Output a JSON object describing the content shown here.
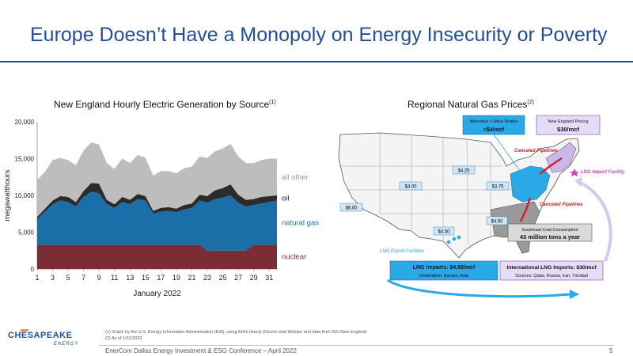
{
  "slide": {
    "title": "Europe Doesn’t Have a Monopoly on Energy Insecurity or Poverty",
    "left_chart_title": "New England Hourly Electric Generation by Source",
    "left_chart_title_note": "(1)",
    "right_chart_title": "Regional Natural Gas Prices",
    "right_chart_title_note": "(2)",
    "footnote_1_prefix": "(1)  Graph by the U.S. Energy Information Administration (EIA), using EIA’s ",
    "footnote_1_italic": "Hourly Electric Grid Monitor",
    "footnote_1_suffix": " and data from ISO New England",
    "footnote_2": "(2)  As of 1/31/2022",
    "footer": "EnerCom Dallas Energy Investment & ESG Conference – April 2022",
    "page_number": "5",
    "logo_text": "CHESAPEAKE",
    "logo_subtext": "ENERGY"
  },
  "chart_data": [
    {
      "type": "area",
      "title": "New England Hourly Electric Generation by Source",
      "xlabel": "January 2022",
      "ylabel": "megawatthours",
      "ylim": [
        0,
        20000
      ],
      "xlim": [
        1,
        32
      ],
      "yticks": [
        "0",
        "5,000",
        "10,000",
        "15,000",
        "20,000"
      ],
      "xticks": [
        "1",
        "3",
        "5",
        "7",
        "9",
        "11",
        "13",
        "15",
        "17",
        "19",
        "21",
        "23",
        "25",
        "27",
        "29",
        "31"
      ],
      "stacked": true,
      "series": [
        {
          "name": "nuclear",
          "color": "#7b2d35",
          "values": [
            3300,
            3300,
            3300,
            3300,
            3300,
            3300,
            3300,
            3300,
            3300,
            3300,
            3300,
            3300,
            3300,
            3300,
            3300,
            3300,
            3300,
            3300,
            3300,
            3300,
            3300,
            3300,
            2500,
            2500,
            2500,
            2500,
            2500,
            2500,
            3300,
            3300,
            3300,
            3300
          ]
        },
        {
          "name": "natural gas",
          "color": "#1a6fa8",
          "values": [
            3500,
            4500,
            5500,
            6000,
            5800,
            5200,
            6500,
            7200,
            7000,
            5500,
            5000,
            5800,
            5500,
            6200,
            6000,
            4200,
            4500,
            4600,
            4400,
            4800,
            5000,
            6000,
            6500,
            7000,
            7200,
            7500,
            6500,
            6000,
            5400,
            5600,
            5800,
            6000
          ]
        },
        {
          "name": "oil",
          "color": "#2b2b2b",
          "values": [
            300,
            400,
            500,
            600,
            700,
            600,
            800,
            1200,
            1300,
            600,
            500,
            700,
            600,
            700,
            600,
            400,
            500,
            500,
            500,
            600,
            600,
            800,
            900,
            1200,
            1300,
            1500,
            1100,
            900,
            800,
            900,
            800,
            700
          ]
        },
        {
          "name": "all other",
          "color": "#bdbdbd",
          "values": [
            5000,
            5000,
            5500,
            5200,
            5000,
            5000,
            5500,
            5500,
            5300,
            5000,
            4800,
            5200,
            5000,
            5300,
            5200,
            4800,
            5000,
            4900,
            4800,
            5000,
            5000,
            5200,
            5200,
            5300,
            5400,
            5500,
            5200,
            5000,
            4900,
            5000,
            5100,
            5000
          ]
        }
      ]
    },
    {
      "type": "map",
      "title": "Regional Natural Gas Prices",
      "price_labels": [
        "$6.00",
        "$4.00",
        "$4.25",
        "$3.75",
        "$4.50",
        "$4.50"
      ],
      "callouts": {
        "marcellus_title": "Marcellus + Utica Shales",
        "marcellus_price": "<$4/mcf",
        "ne_title": "New England Pricing",
        "ne_price": "$30/mcf",
        "canceled_pipelines_top": "Canceled Pipelines",
        "canceled_pipelines_right": "Canceled Pipelines",
        "lng_import_facility": "LNG Import Facility",
        "lng_export_facilities": "LNG Export Facilities",
        "coal_title": "Southeast Coal Consumption",
        "coal_value": "43 million tons a year",
        "lng_exports_title": "LNG Imports: $4.50/mcf",
        "lng_exports_sub": "Destination: Europe, Asia",
        "intl_title": "International LNG Imports: $30/mcf",
        "intl_sub": "Sources: Qatar, Russia, Iran, Trinidad"
      }
    }
  ]
}
